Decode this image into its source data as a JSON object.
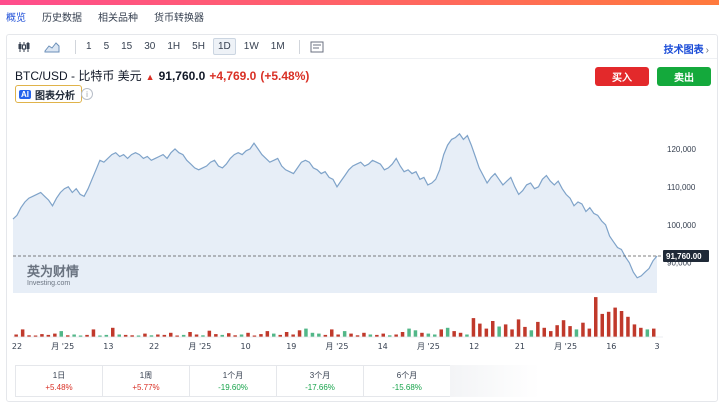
{
  "nav": {
    "items": [
      "概览",
      "历史数据",
      "相关品种",
      "货币转换器"
    ],
    "active": "概览"
  },
  "toolbar": {
    "timeframes": [
      "1",
      "5",
      "15",
      "30",
      "1H",
      "5H",
      "1D",
      "1W",
      "1M"
    ],
    "active_timeframe": "1D",
    "tech_chart_label": "技术图表",
    "tech_chart_arrow": "›"
  },
  "instrument": {
    "name": "BTC/USD - 比特币 美元",
    "price": "91,760.0",
    "change": "+4,769.0",
    "change_pct": "(+5.48%)"
  },
  "buttons": {
    "buy": "买入",
    "sell": "卖出"
  },
  "analysis": {
    "badge": "AI",
    "label": "图表分析"
  },
  "watermark": {
    "brand": "英为财情",
    "sub": "Investing.com"
  },
  "colors": {
    "accent": "#e3292b",
    "buy": "#e3292b",
    "sell": "#14a93c",
    "line": "#7fa3c9",
    "area": "#e7eef7",
    "vol_up": "#c0392b",
    "vol_down": "#52b788"
  },
  "chart_data": {
    "type": "area",
    "ylim": [
      82000,
      130000
    ],
    "yticks": [
      "120,000",
      "110,000",
      "100,000",
      "90,000"
    ],
    "ytick_values": [
      120000,
      110000,
      100000,
      90000
    ],
    "current_price_label": "91,760.00",
    "current_price": 91760,
    "xticks": [
      "22",
      "月 '25",
      "13",
      "22",
      "月 '25",
      "10",
      "19",
      "月 '25",
      "14",
      "月 '25",
      "12",
      "21",
      "月 '25",
      "16",
      "3"
    ],
    "values": [
      101500,
      102500,
      104500,
      106000,
      107000,
      107500,
      108000,
      108500,
      107500,
      106500,
      105000,
      107000,
      108500,
      109500,
      110000,
      108500,
      109500,
      108000,
      107500,
      109500,
      112000,
      114500,
      117000,
      116500,
      117500,
      118500,
      119000,
      118000,
      118500,
      117500,
      118500,
      119000,
      118500,
      117500,
      118000,
      117000,
      117500,
      118000,
      118500,
      117500,
      119000,
      120000,
      119000,
      118500,
      117000,
      116000,
      115000,
      114500,
      115000,
      115500,
      116500,
      117000,
      115500,
      115000,
      116000,
      117500,
      118500,
      119000,
      118500,
      119500,
      120000,
      121500,
      120000,
      118500,
      117500,
      116500,
      117000,
      117500,
      115500,
      114500,
      114000,
      113500,
      115000,
      116500,
      117000,
      116500,
      115000,
      114500,
      113500,
      114000,
      112500,
      112000,
      110000,
      111500,
      113000,
      114500,
      115500,
      116000,
      116500,
      115500,
      116000,
      117000,
      116500,
      116000,
      114500,
      115000,
      116000,
      117500,
      115500,
      114000,
      114500,
      113500,
      114000,
      112000,
      112500,
      110500,
      111000,
      112000,
      114500,
      118500,
      121000,
      122500,
      123000,
      124000,
      122500,
      123500,
      121000,
      118000,
      115000,
      113000,
      111000,
      112500,
      113500,
      112000,
      110500,
      111500,
      112500,
      110000,
      108000,
      109000,
      110500,
      111000,
      109500,
      110000,
      112000,
      113000,
      111500,
      110500,
      111500,
      109500,
      108000,
      107000,
      105000,
      106000,
      105500,
      103500,
      104500,
      103000,
      102500,
      101000,
      100000,
      97000,
      95500,
      94000,
      93500,
      91500,
      90000,
      87500,
      86000,
      86500,
      87500,
      88500,
      90500,
      91760
    ],
    "volume": [
      {
        "v": 0.06,
        "up": true
      },
      {
        "v": 0.18,
        "up": true
      },
      {
        "v": 0.04,
        "up": true
      },
      {
        "v": 0.03,
        "up": true
      },
      {
        "v": 0.07,
        "up": true
      },
      {
        "v": 0.05,
        "up": true
      },
      {
        "v": 0.08,
        "up": true
      },
      {
        "v": 0.14,
        "up": false
      },
      {
        "v": 0.04,
        "up": true
      },
      {
        "v": 0.06,
        "up": false
      },
      {
        "v": 0.03,
        "up": false
      },
      {
        "v": 0.05,
        "up": true
      },
      {
        "v": 0.18,
        "up": true
      },
      {
        "v": 0.03,
        "up": false
      },
      {
        "v": 0.05,
        "up": false
      },
      {
        "v": 0.22,
        "up": true
      },
      {
        "v": 0.06,
        "up": false
      },
      {
        "v": 0.05,
        "up": true
      },
      {
        "v": 0.04,
        "up": true
      },
      {
        "v": 0.03,
        "up": false
      },
      {
        "v": 0.08,
        "up": true
      },
      {
        "v": 0.04,
        "up": false
      },
      {
        "v": 0.06,
        "up": true
      },
      {
        "v": 0.05,
        "up": true
      },
      {
        "v": 0.1,
        "up": true
      },
      {
        "v": 0.03,
        "up": true
      },
      {
        "v": 0.05,
        "up": false
      },
      {
        "v": 0.12,
        "up": true
      },
      {
        "v": 0.06,
        "up": true
      },
      {
        "v": 0.04,
        "up": false
      },
      {
        "v": 0.15,
        "up": true
      },
      {
        "v": 0.07,
        "up": true
      },
      {
        "v": 0.05,
        "up": false
      },
      {
        "v": 0.09,
        "up": true
      },
      {
        "v": 0.04,
        "up": true
      },
      {
        "v": 0.06,
        "up": false
      },
      {
        "v": 0.1,
        "up": true
      },
      {
        "v": 0.03,
        "up": true
      },
      {
        "v": 0.07,
        "up": true
      },
      {
        "v": 0.14,
        "up": true
      },
      {
        "v": 0.08,
        "up": false
      },
      {
        "v": 0.05,
        "up": true
      },
      {
        "v": 0.12,
        "up": true
      },
      {
        "v": 0.06,
        "up": true
      },
      {
        "v": 0.16,
        "up": true
      },
      {
        "v": 0.2,
        "up": false
      },
      {
        "v": 0.1,
        "up": false
      },
      {
        "v": 0.08,
        "up": false
      },
      {
        "v": 0.05,
        "up": true
      },
      {
        "v": 0.18,
        "up": true
      },
      {
        "v": 0.06,
        "up": true
      },
      {
        "v": 0.14,
        "up": false
      },
      {
        "v": 0.08,
        "up": true
      },
      {
        "v": 0.04,
        "up": true
      },
      {
        "v": 0.1,
        "up": true
      },
      {
        "v": 0.06,
        "up": false
      },
      {
        "v": 0.05,
        "up": true
      },
      {
        "v": 0.08,
        "up": true
      },
      {
        "v": 0.04,
        "up": false
      },
      {
        "v": 0.06,
        "up": true
      },
      {
        "v": 0.12,
        "up": true
      },
      {
        "v": 0.2,
        "up": false
      },
      {
        "v": 0.16,
        "up": false
      },
      {
        "v": 0.1,
        "up": true
      },
      {
        "v": 0.08,
        "up": false
      },
      {
        "v": 0.06,
        "up": false
      },
      {
        "v": 0.18,
        "up": true
      },
      {
        "v": 0.22,
        "up": false
      },
      {
        "v": 0.14,
        "up": true
      },
      {
        "v": 0.1,
        "up": true
      },
      {
        "v": 0.06,
        "up": false
      },
      {
        "v": 0.45,
        "up": true
      },
      {
        "v": 0.32,
        "up": true
      },
      {
        "v": 0.2,
        "up": true
      },
      {
        "v": 0.38,
        "up": true
      },
      {
        "v": 0.25,
        "up": false
      },
      {
        "v": 0.3,
        "up": true
      },
      {
        "v": 0.18,
        "up": true
      },
      {
        "v": 0.42,
        "up": true
      },
      {
        "v": 0.24,
        "up": true
      },
      {
        "v": 0.16,
        "up": false
      },
      {
        "v": 0.36,
        "up": true
      },
      {
        "v": 0.22,
        "up": true
      },
      {
        "v": 0.14,
        "up": true
      },
      {
        "v": 0.28,
        "up": true
      },
      {
        "v": 0.4,
        "up": true
      },
      {
        "v": 0.26,
        "up": true
      },
      {
        "v": 0.18,
        "up": false
      },
      {
        "v": 0.34,
        "up": true
      },
      {
        "v": 0.2,
        "up": true
      },
      {
        "v": 0.95,
        "up": true
      },
      {
        "v": 0.55,
        "up": true
      },
      {
        "v": 0.6,
        "up": true
      },
      {
        "v": 0.7,
        "up": true
      },
      {
        "v": 0.62,
        "up": true
      },
      {
        "v": 0.48,
        "up": true
      },
      {
        "v": 0.3,
        "up": true
      },
      {
        "v": 0.22,
        "up": true
      },
      {
        "v": 0.18,
        "up": false
      },
      {
        "v": 0.2,
        "up": true
      }
    ]
  },
  "performance": [
    {
      "period": "1日",
      "value": "+5.48%",
      "positive": true
    },
    {
      "period": "1周",
      "value": "+5.77%",
      "positive": true
    },
    {
      "period": "1个月",
      "value": "-19.60%",
      "positive": false
    },
    {
      "period": "3个月",
      "value": "-17.66%",
      "positive": false
    },
    {
      "period": "6个月",
      "value": "-15.68%",
      "positive": false
    }
  ]
}
